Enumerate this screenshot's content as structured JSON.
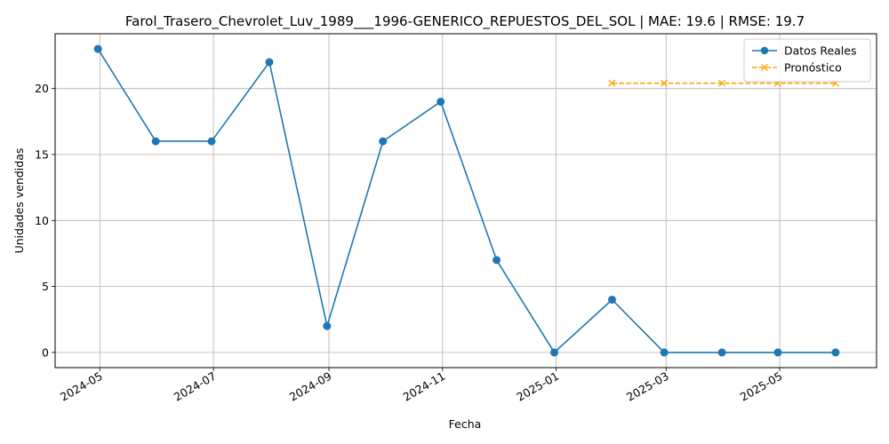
{
  "chart_data": {
    "type": "line",
    "title": "Farol_Trasero_Chevrolet_Luv_1989___1996-GENERICO_REPUESTOS_DEL_SOL | MAE: 19.6 | RMSE: 19.7",
    "xlabel": "Fecha",
    "ylabel": "Unidades vendidas",
    "xlim": [
      "2024-04-07",
      "2025-06-22"
    ],
    "ylim": [
      -1.15,
      24.15
    ],
    "x_ticks": [
      "2024-05-01",
      "2024-07-01",
      "2024-09-01",
      "2024-11-01",
      "2025-01-01",
      "2025-03-01",
      "2025-05-01"
    ],
    "x_tick_labels": [
      "2024-05",
      "2024-07",
      "2024-09",
      "2024-11",
      "2025-01",
      "2025-03",
      "2025-05"
    ],
    "y_ticks": [
      0,
      5,
      10,
      15,
      20
    ],
    "y_tick_labels": [
      "0",
      "5",
      "10",
      "15",
      "20"
    ],
    "grid": true,
    "legend_position": "top-right",
    "series": [
      {
        "name": "Datos Reales",
        "color": "#1f77b4",
        "marker": "circle",
        "line_style": "solid",
        "x": [
          "2024-04-30",
          "2024-05-31",
          "2024-06-30",
          "2024-07-31",
          "2024-08-31",
          "2024-09-30",
          "2024-10-31",
          "2024-11-30",
          "2024-12-31",
          "2025-01-31",
          "2025-02-28",
          "2025-03-31",
          "2025-04-30",
          "2025-05-31"
        ],
        "y": [
          23,
          16,
          16,
          22,
          2,
          16,
          19,
          7,
          0,
          4,
          0,
          0,
          0,
          0
        ]
      },
      {
        "name": "Pronóstico",
        "color": "#ffa500",
        "marker": "x",
        "line_style": "dashed",
        "x": [
          "2025-01-31",
          "2025-02-28",
          "2025-03-31",
          "2025-04-30",
          "2025-05-31"
        ],
        "y": [
          20.4,
          20.4,
          20.4,
          20.4,
          20.4
        ]
      }
    ]
  }
}
